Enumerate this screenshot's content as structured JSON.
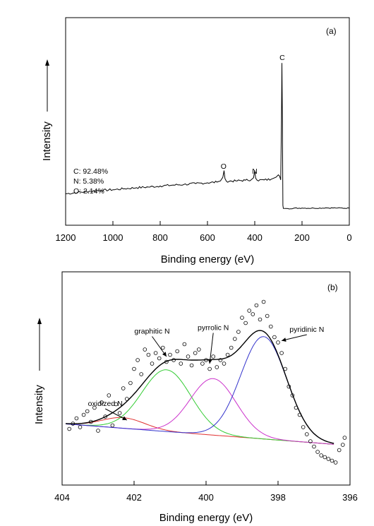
{
  "chart_data": [
    {
      "type": "line",
      "panel_label": "(a)",
      "xlabel": "Binding energy (eV)",
      "ylabel": "Intensity",
      "xlim": [
        1200,
        0
      ],
      "x_reversed": true,
      "ylim": [
        0,
        100
      ],
      "xticks": [
        1200,
        1000,
        800,
        600,
        400,
        200,
        0
      ],
      "grid": false,
      "composition": [
        {
          "label": "C: 92.48%"
        },
        {
          "label": "N: 5.38%"
        },
        {
          "label": "O: 2.14%"
        }
      ],
      "peak_labels": [
        {
          "text": "C",
          "x": 284,
          "y": 92
        },
        {
          "text": "O",
          "x": 532,
          "y": 28
        },
        {
          "text": "N",
          "x": 400,
          "y": 25
        }
      ],
      "series": [
        {
          "color": "#000000",
          "points": [
            [
              1200,
              14.8
            ],
            [
              1150,
              15.6
            ],
            [
              1100,
              16.3
            ],
            [
              1050,
              16.8
            ],
            [
              1000,
              17.2
            ],
            [
              950,
              17.8
            ],
            [
              900,
              18.4
            ],
            [
              850,
              18.8
            ],
            [
              800,
              19.4
            ],
            [
              750,
              19.9
            ],
            [
              700,
              20.3
            ],
            [
              650,
              20.8
            ],
            [
              600,
              21.3
            ],
            [
              560,
              21.7
            ],
            [
              545,
              22.4
            ],
            [
              535,
              24.6
            ],
            [
              530,
              28.5
            ],
            [
              526,
              23.8
            ],
            [
              520,
              22.2
            ],
            [
              480,
              22.4
            ],
            [
              440,
              22.8
            ],
            [
              415,
              23.1
            ],
            [
              405,
              24.3
            ],
            [
              400,
              28.6
            ],
            [
              396,
              24.0
            ],
            [
              390,
              22.8
            ],
            [
              360,
              23.0
            ],
            [
              330,
              23.4
            ],
            [
              310,
              24.6
            ],
            [
              300,
              26.0
            ],
            [
              295,
              25.2
            ],
            [
              290,
              23.0
            ],
            [
              287,
              58.0
            ],
            [
              285,
              92.0
            ],
            [
              283,
              58.0
            ],
            [
              281,
              8.0
            ],
            [
              279,
              6.2
            ],
            [
              260,
              6.1
            ],
            [
              200,
              6.4
            ],
            [
              150,
              6.3
            ],
            [
              100,
              6.5
            ],
            [
              50,
              6.4
            ],
            [
              0,
              6.3
            ]
          ]
        }
      ]
    },
    {
      "type": "scatter",
      "panel_label": "(b)",
      "xlabel": "Binding energy (eV)",
      "ylabel": "Intensity",
      "xlim": [
        404,
        396
      ],
      "x_reversed": true,
      "ylim": [
        0,
        100
      ],
      "xticks": [
        404,
        402,
        400,
        398,
        396
      ],
      "grid": false,
      "annotations": [
        {
          "text": "oxidized N",
          "x": 402.8,
          "y": 34,
          "arrow_to": [
            402.2,
            26
          ]
        },
        {
          "text": "graphitic N",
          "x": 401.5,
          "y": 75,
          "arrow_to": [
            401.1,
            62
          ]
        },
        {
          "text": "pyrrolic N",
          "x": 399.8,
          "y": 77,
          "arrow_to": [
            399.9,
            58
          ]
        },
        {
          "text": "pyridinic N",
          "x": 397.2,
          "y": 76,
          "arrow_to": [
            397.9,
            71
          ]
        }
      ],
      "series": [
        {
          "kind": "points",
          "marker": "open-circle",
          "color": "#000000",
          "x": [
            403.8,
            403.7,
            403.6,
            403.5,
            403.4,
            403.3,
            403.2,
            403.1,
            403.0,
            402.9,
            402.8,
            402.7,
            402.6,
            402.5,
            402.4,
            402.3,
            402.2,
            402.1,
            402.0,
            401.9,
            401.8,
            401.7,
            401.6,
            401.5,
            401.4,
            401.3,
            401.2,
            401.1,
            401.0,
            400.9,
            400.8,
            400.7,
            400.6,
            400.5,
            400.4,
            400.3,
            400.2,
            400.1,
            400.0,
            399.9,
            399.8,
            399.7,
            399.6,
            399.5,
            399.4,
            399.3,
            399.2,
            399.1,
            399.0,
            398.9,
            398.8,
            398.7,
            398.6,
            398.5,
            398.4,
            398.3,
            398.2,
            398.1,
            398.0,
            397.9,
            397.8,
            397.7,
            397.6,
            397.5,
            397.4,
            397.3,
            397.2,
            397.1,
            397.0,
            396.9,
            396.8,
            396.7,
            396.6,
            396.5,
            396.4,
            396.3,
            396.2,
            396.15
          ],
          "y": [
            21,
            24,
            27,
            22,
            29,
            31,
            25,
            33,
            20,
            36,
            28,
            40,
            23,
            35,
            30,
            44,
            38,
            47,
            55,
            60,
            52,
            66,
            63,
            58,
            64,
            61,
            67,
            59,
            63,
            60,
            65,
            58,
            69,
            62,
            57,
            64,
            66,
            58,
            60,
            55,
            62,
            56,
            60,
            58,
            63,
            67,
            72,
            76,
            84,
            81,
            88,
            86,
            91,
            83,
            93,
            85,
            79,
            73,
            70,
            64,
            55,
            45,
            40,
            33,
            29,
            22,
            18,
            14,
            11,
            8,
            6,
            5,
            4,
            3,
            2,
            9,
            12,
            16
          ]
        },
        {
          "kind": "fit",
          "name": "envelope",
          "color": "#000000"
        },
        {
          "kind": "component",
          "name": "oxidized N",
          "color": "#e03030",
          "center": 402.3,
          "height": 6,
          "fwhm": 1.4
        },
        {
          "kind": "component",
          "name": "graphitic N",
          "color": "#33cc33",
          "center": 401.1,
          "height": 35,
          "fwhm": 1.6
        },
        {
          "kind": "component",
          "name": "pyrrolic N",
          "color": "#cc33cc",
          "center": 399.8,
          "height": 32,
          "fwhm": 1.5
        },
        {
          "kind": "component",
          "name": "pyridinic N",
          "color": "#3333cc",
          "center": 398.4,
          "height": 58,
          "fwhm": 1.5
        }
      ]
    }
  ]
}
